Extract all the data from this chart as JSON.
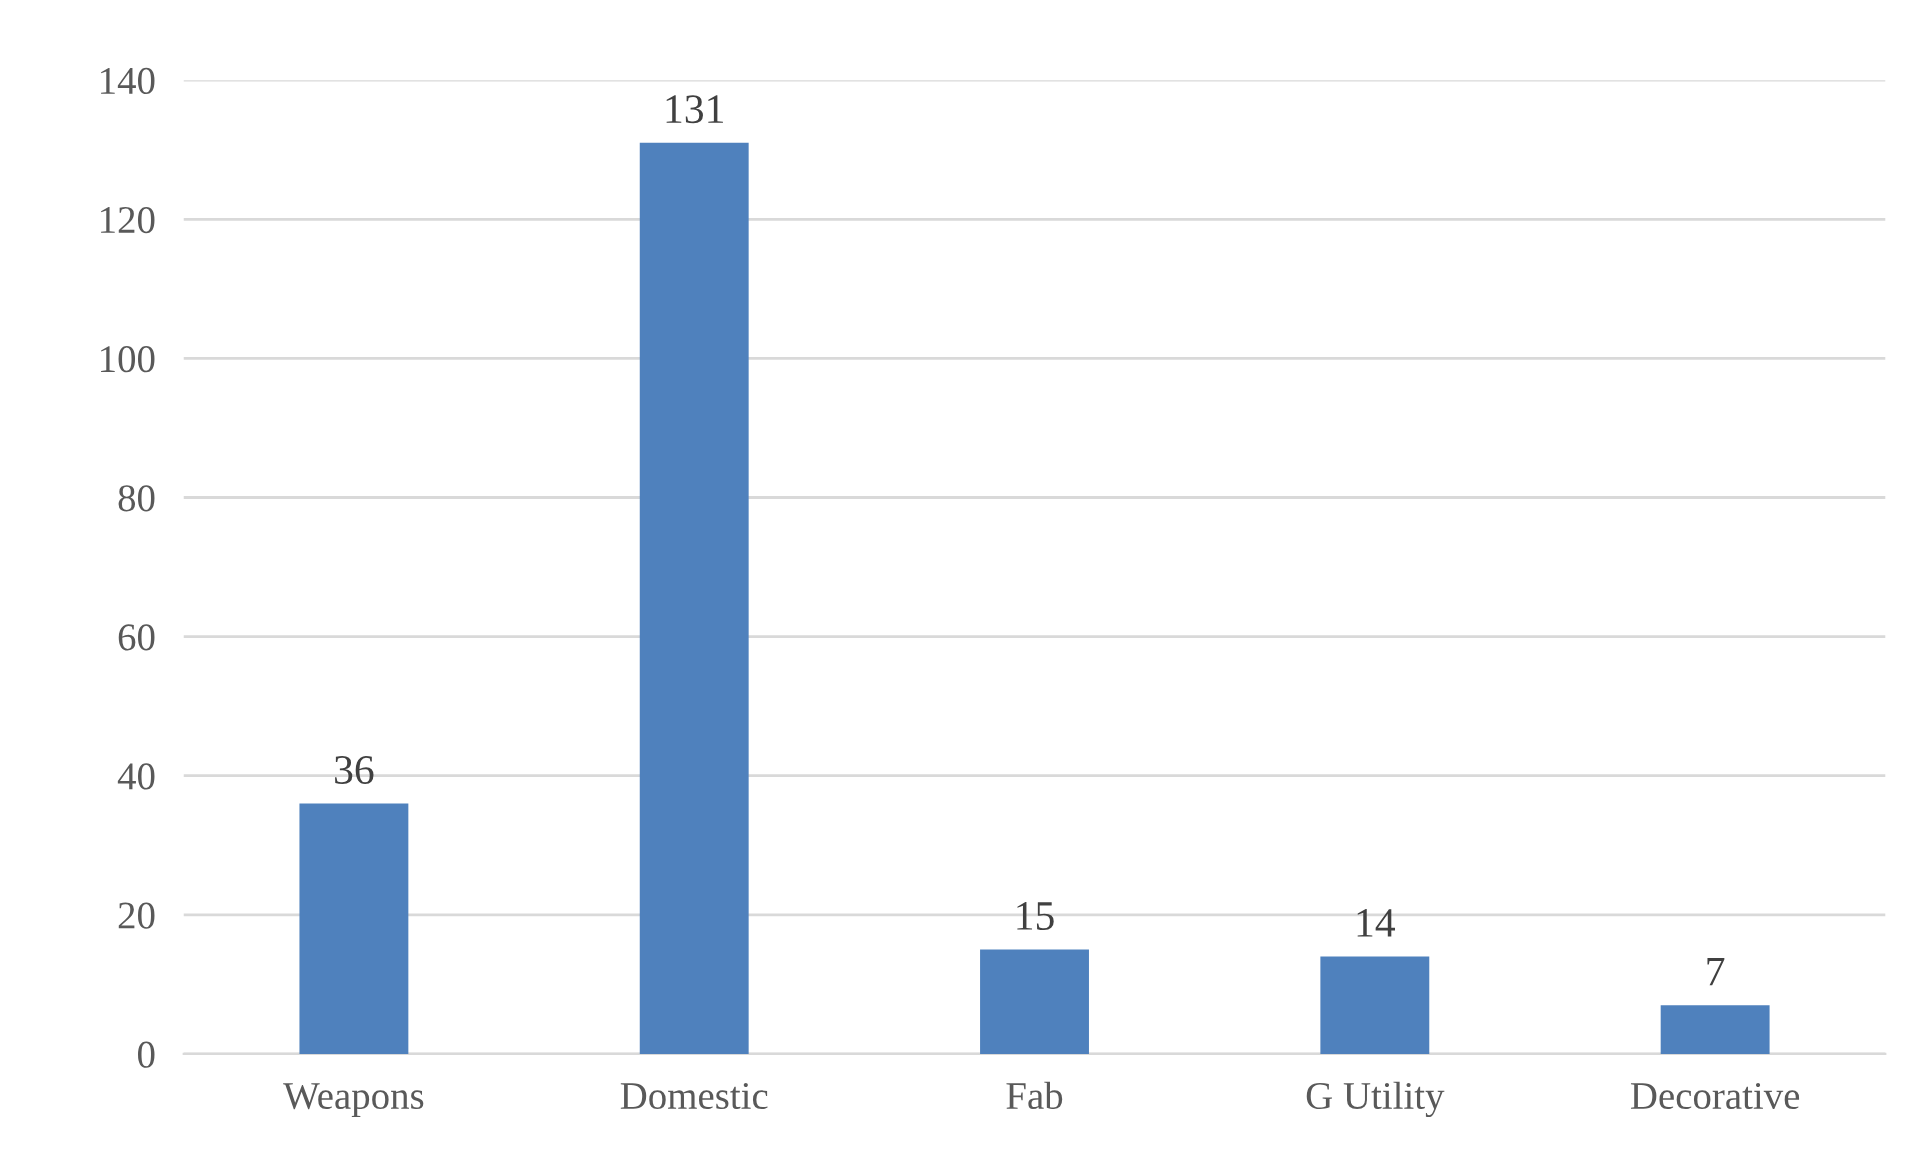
{
  "chart_data": {
    "type": "bar",
    "categories": [
      "Weapons",
      "Domestic",
      "Fab",
      "G Utility",
      "Decorative"
    ],
    "values": [
      36,
      131,
      15,
      14,
      7
    ],
    "color": "#4f81bd",
    "ylim": [
      0,
      140
    ],
    "yticks": [
      0,
      20,
      40,
      60,
      80,
      100,
      120,
      140
    ],
    "grid": "y",
    "data_labels": true
  }
}
